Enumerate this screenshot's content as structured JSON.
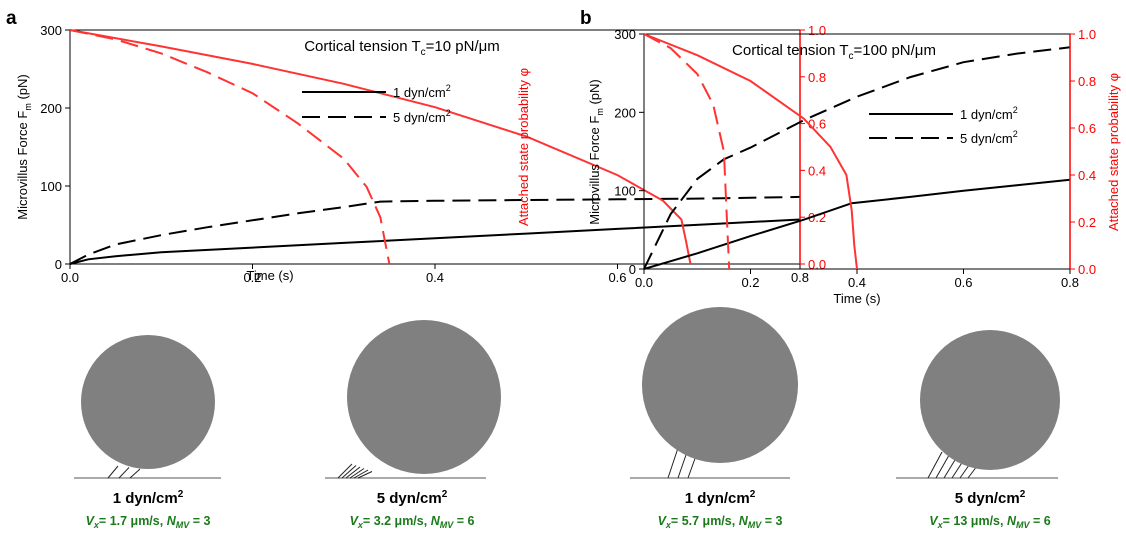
{
  "colors": {
    "force": "#000000",
    "probability": "#ff3333",
    "axis_right": "#ff0000",
    "cell": "#808080",
    "velocity_text": "#1a7a1a"
  },
  "chart_data": [
    {
      "panel": "a",
      "type": "line",
      "title_main": "Cortical tension T",
      "title_sub": "c",
      "title_tail": "=10 pN/",
      "title_unit": "μm",
      "xlabel": "Time (s)",
      "ylabel_left": {
        "text": "Microvillus Force F",
        "sub": "m",
        "tail": " (pN)"
      },
      "ylabel_right": {
        "text": "Attached state probability ",
        "symbol": "φ"
      },
      "xlim": [
        0,
        0.8
      ],
      "ylim_left": [
        0,
        300
      ],
      "ylim_right": [
        0,
        1.0
      ],
      "xticks": [
        "0.0",
        "0.2",
        "0.4",
        "0.6",
        "0.8"
      ],
      "yticks_left": [
        "0",
        "100",
        "200",
        "300"
      ],
      "yticks_right": [
        "0.0",
        "0.2",
        "0.4",
        "0.6",
        "0.8",
        "1.0"
      ],
      "legend": [
        {
          "label": "1 dyn/cm",
          "sup": "2",
          "dash": "solid"
        },
        {
          "label": "5 dyn/cm",
          "sup": "2",
          "dash": "dashed"
        }
      ],
      "series": [
        {
          "axis": "left",
          "dash": "solid",
          "x": [
            0,
            0.02,
            0.05,
            0.1,
            0.2,
            0.3,
            0.4,
            0.5,
            0.6,
            0.7,
            0.8
          ],
          "y": [
            0,
            6,
            10,
            15,
            21,
            27,
            33,
            39,
            45,
            51,
            57
          ]
        },
        {
          "axis": "left",
          "dash": "dashed",
          "x": [
            0,
            0.02,
            0.05,
            0.1,
            0.15,
            0.2,
            0.25,
            0.3,
            0.34,
            0.4,
            0.5,
            0.6,
            0.7,
            0.8
          ],
          "y": [
            0,
            12,
            25,
            37,
            47,
            56,
            65,
            73,
            80,
            81,
            82,
            83,
            84,
            86
          ]
        },
        {
          "axis": "right",
          "dash": "solid",
          "x": [
            0,
            0.1,
            0.2,
            0.3,
            0.4,
            0.5,
            0.6,
            0.65,
            0.67,
            0.675,
            0.68
          ],
          "y": [
            1.0,
            0.93,
            0.855,
            0.77,
            0.67,
            0.545,
            0.38,
            0.27,
            0.19,
            0.1,
            0.0
          ]
        },
        {
          "axis": "right",
          "dash": "dashed",
          "x": [
            0,
            0.05,
            0.1,
            0.15,
            0.2,
            0.25,
            0.3,
            0.325,
            0.34,
            0.345,
            0.35
          ],
          "y": [
            1.0,
            0.96,
            0.9,
            0.82,
            0.73,
            0.6,
            0.45,
            0.33,
            0.2,
            0.1,
            0.0
          ]
        }
      ]
    },
    {
      "panel": "b",
      "type": "line",
      "title_main": "Cortical tension T",
      "title_sub": "c",
      "title_tail": "=100 pN/",
      "title_unit": "μm",
      "xlabel": "Time (s)",
      "ylabel_left": {
        "text": "Microvillus Force F",
        "sub": "m",
        "tail": " (pN)"
      },
      "ylabel_right": {
        "text": "Attached state probability ",
        "symbol": "φ"
      },
      "xlim": [
        0,
        0.8
      ],
      "ylim_left": [
        0,
        300
      ],
      "ylim_right": [
        0,
        1.0
      ],
      "xticks": [
        "0.0",
        "0.2",
        "0.4",
        "0.6",
        "0.8"
      ],
      "yticks_left": [
        "0",
        "100",
        "200",
        "300"
      ],
      "yticks_right": [
        "0.0",
        "0.2",
        "0.4",
        "0.6",
        "0.8",
        "1.0"
      ],
      "legend": [
        {
          "label": "1 dyn/cm",
          "sup": "2",
          "dash": "solid"
        },
        {
          "label": "5 dyn/cm",
          "sup": "2",
          "dash": "dashed"
        }
      ],
      "series": [
        {
          "axis": "left",
          "dash": "solid",
          "x": [
            0,
            0.05,
            0.1,
            0.2,
            0.3,
            0.39,
            0.5,
            0.6,
            0.7,
            0.8
          ],
          "y": [
            0,
            10,
            20,
            42,
            63,
            84,
            92,
            100,
            107,
            114
          ]
        },
        {
          "axis": "left",
          "dash": "dashed",
          "x": [
            0,
            0.05,
            0.1,
            0.15,
            0.2,
            0.3,
            0.4,
            0.5,
            0.6,
            0.7,
            0.8
          ],
          "y": [
            0,
            70,
            115,
            140,
            155,
            190,
            220,
            245,
            264,
            275,
            283
          ]
        },
        {
          "axis": "right",
          "dash": "solid",
          "x": [
            0,
            0.1,
            0.2,
            0.3,
            0.35,
            0.38,
            0.39,
            0.395,
            0.4
          ],
          "y": [
            1.0,
            0.91,
            0.8,
            0.64,
            0.52,
            0.4,
            0.25,
            0.1,
            0.0
          ]
        },
        {
          "axis": "right",
          "dash": "dashed",
          "x": [
            0,
            0.05,
            0.1,
            0.13,
            0.15,
            0.155,
            0.16
          ],
          "y": [
            1.0,
            0.94,
            0.83,
            0.7,
            0.5,
            0.25,
            0.0
          ]
        }
      ]
    }
  ],
  "cells": [
    {
      "panel": "a",
      "shear_label": "1 dyn/cm",
      "shear_sup": "2",
      "vx_symbol": "V",
      "vx_sub": "x",
      "vx_value": "= 1.7 μm/s, ",
      "nmv_symbol": "N",
      "nmv_sub": "MV",
      "nmv_value": " = 3",
      "microvilli": 3
    },
    {
      "panel": "a",
      "shear_label": "5 dyn/cm",
      "shear_sup": "2",
      "vx_symbol": "V",
      "vx_sub": "x",
      "vx_value": "= 3.2 μm/s, ",
      "nmv_symbol": "N",
      "nmv_sub": "MV",
      "nmv_value": " = 6",
      "microvilli": 6
    },
    {
      "panel": "b",
      "shear_label": "1 dyn/cm",
      "shear_sup": "2",
      "vx_symbol": "V",
      "vx_sub": "x",
      "vx_value": "= 5.7 μm/s, ",
      "nmv_symbol": "N",
      "nmv_sub": "MV",
      "nmv_value": " = 3",
      "microvilli": 3
    },
    {
      "panel": "b",
      "shear_label": "5 dyn/cm",
      "shear_sup": "2",
      "vx_symbol": "V",
      "vx_sub": "x",
      "vx_value": "= 13 μm/s, ",
      "nmv_symbol": "N",
      "nmv_sub": "MV",
      "nmv_value": " = 6",
      "microvilli": 6
    }
  ]
}
